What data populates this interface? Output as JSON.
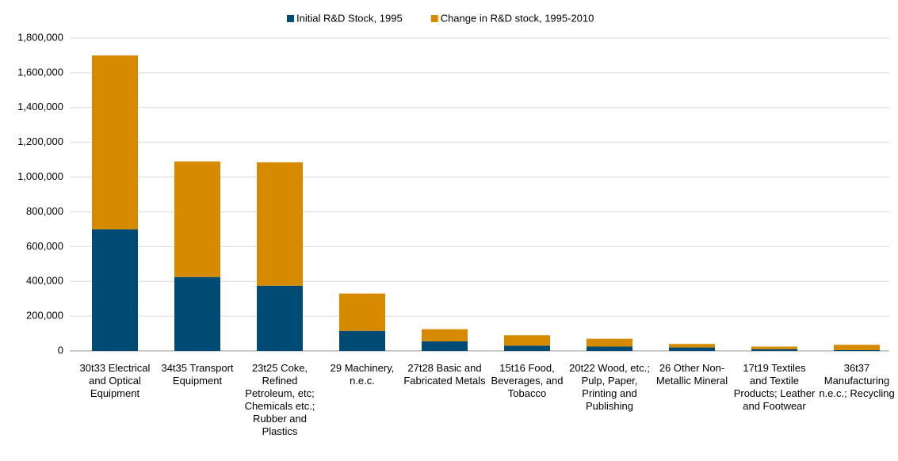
{
  "chart_data": {
    "type": "stacked_bar",
    "categories": [
      "30t33 Electrical and Optical Equipment",
      "34t35 Transport Equipment",
      "23t25 Coke, Refined Petroleum, etc; Chemicals etc.; Rubber and Plastics",
      "29 Machinery, n.e.c.",
      "27t28 Basic and Fabricated Metals",
      "15t16 Food, Beverages, and Tobacco",
      "20t22 Wood, etc.; Pulp, Paper, Printing and Publishing",
      "26 Other Non-Metallic Mineral",
      "17t19 Textiles and Textile Products; Leather and Footwear",
      "36t37 Manufacturing n.e.c.; Recycling"
    ],
    "series": [
      {
        "name": "Initial R&D Stock, 1995",
        "color": "#004b74",
        "values": [
          700000,
          425000,
          375000,
          115000,
          55000,
          30000,
          25000,
          20000,
          10000,
          5000
        ]
      },
      {
        "name": "Change in R&D stock, 1995-2010",
        "color": "#d58a00",
        "values": [
          1000000,
          665000,
          710000,
          215000,
          70000,
          60000,
          45000,
          20000,
          15000,
          30000
        ]
      }
    ],
    "ylim": [
      0,
      1800000
    ],
    "yticks": [
      0,
      {
        "value": 200000,
        "label": "200,000"
      },
      {
        "value": 400000,
        "label": "400,000"
      },
      {
        "value": 600000,
        "label": "600,000"
      },
      {
        "value": 800000,
        "label": "800,000"
      },
      {
        "value": 1000000,
        "label": "1,000,000"
      },
      {
        "value": 1200000,
        "label": "1,200,000"
      },
      {
        "value": 1400000,
        "label": "1,400,000"
      },
      {
        "value": 1600000,
        "label": "1,600,000"
      },
      {
        "value": 1800000,
        "label": "1,800,000"
      }
    ],
    "grid": true,
    "legend": "top"
  }
}
